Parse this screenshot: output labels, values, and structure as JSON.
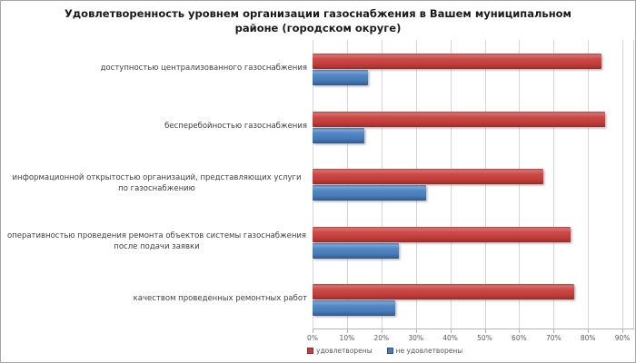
{
  "window": {
    "background": "#ffffff",
    "border_color": "#a6a6a6"
  },
  "title_lines": [
    "Удовлетворенность уровнем организации газоснабжения в Вашем муниципальном",
    "районе (городском округе)"
  ],
  "chart_data": {
    "type": "bar",
    "orientation": "horizontal",
    "title": "Удовлетворенность уровнем организации газоснабжения в Вашем муниципальном районе (городском округе)",
    "categories": [
      "доступностью централизованного газоснабжения",
      "бесперебойностью газоснабжения",
      "информационной открытостью организаций, представляющих услуги по газоснабжению",
      "оперативностью проведения ремонта объектов системы газоснабжения после подачи заявки",
      "качеством проведенных ремонтных работ"
    ],
    "series": [
      {
        "name": "удовлетворены",
        "color": "#c0403d",
        "values": [
          84,
          85,
          67,
          75,
          76
        ]
      },
      {
        "name": "не удовлетворены",
        "color": "#4a7ebb",
        "values": [
          16,
          15,
          33,
          25,
          24
        ]
      }
    ],
    "x_ticks": [
      "0%",
      "10%",
      "20%",
      "30%",
      "40%",
      "50%",
      "60%",
      "70%",
      "80%",
      "90%"
    ],
    "xlim": [
      0,
      93
    ],
    "x_unit": "%",
    "grid": true,
    "legend_position": "bottom-left"
  }
}
